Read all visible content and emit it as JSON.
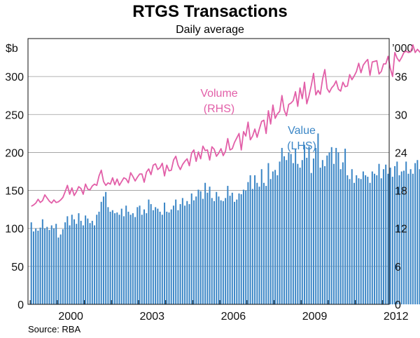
{
  "chart_data": {
    "type": "bar",
    "title": "RTGS Transactions",
    "subtitle": "Daily average",
    "source": "Source: RBA",
    "left_axis": {
      "unit": "$b",
      "ticks": [
        "0",
        "50",
        "100",
        "150",
        "200",
        "250",
        "300"
      ],
      "min": 0,
      "max": 350
    },
    "right_axis": {
      "unit": "’000",
      "ticks": [
        "0",
        "6",
        "12",
        "18",
        "24",
        "30",
        "36"
      ],
      "min": 0,
      "max": 42
    },
    "x_ticks": [
      "2000",
      "2003",
      "2006",
      "2009",
      "2012"
    ],
    "x_range": [
      1998.92,
      2012.25
    ],
    "series": [
      {
        "name": "Value",
        "axis": "left",
        "type": "bar",
        "color": "#3b86c6",
        "annotation": [
          "Value",
          "(LHS)"
        ],
        "start": 1999.0,
        "step_months": 1,
        "values": [
          108,
          96,
          100,
          97,
          101,
          112,
          100,
          102,
          98,
          104,
          100,
          106,
          88,
          92,
          99,
          108,
          116,
          104,
          118,
          112,
          106,
          120,
          110,
          104,
          117,
          113,
          107,
          110,
          104,
          118,
          122,
          135,
          142,
          148,
          128,
          122,
          124,
          120,
          121,
          118,
          126,
          116,
          130,
          122,
          118,
          120,
          115,
          128,
          130,
          118,
          125,
          120,
          138,
          132,
          124,
          128,
          126,
          122,
          118,
          134,
          122,
          121,
          125,
          130,
          138,
          124,
          132,
          140,
          130,
          136,
          132,
          146,
          137,
          142,
          151,
          149,
          139,
          160,
          147,
          155,
          140,
          136,
          148,
          142,
          137,
          136,
          140,
          156,
          143,
          147,
          135,
          138,
          146,
          145,
          151,
          150,
          161,
          170,
          152,
          170,
          160,
          155,
          178,
          160,
          156,
          186,
          165,
          175,
          177,
          170,
          188,
          206,
          195,
          190,
          200,
          198,
          186,
          205,
          185,
          180,
          190,
          210,
          193,
          208,
          173,
          192,
          206,
          225,
          180,
          190,
          182,
          196,
          200,
          207,
          185,
          206,
          200,
          178,
          187,
          205,
          170,
          165,
          178,
          160,
          170,
          166,
          165,
          175,
          170,
          168,
          160,
          175,
          172,
          170,
          185,
          166,
          178,
          184,
          172,
          180,
          168,
          182,
          188,
          170,
          175,
          176,
          188,
          172,
          178,
          172,
          186,
          190,
          178,
          176,
          170,
          182,
          188,
          166,
          178,
          174,
          182,
          185,
          155,
          158,
          155,
          165,
          170,
          170,
          156,
          172
        ]
      },
      {
        "name": "Volume",
        "axis": "right",
        "type": "line",
        "color": "#e25fa8",
        "annotation": [
          "Volume",
          "(RHS)"
        ],
        "start": 1999.0,
        "step_months": 1,
        "values": [
          15.5,
          15.7,
          16.0,
          16.6,
          16.1,
          16.4,
          17.3,
          16.8,
          16.3,
          16.0,
          16.5,
          16.1,
          16.2,
          16.5,
          16.9,
          17.8,
          18.8,
          17.4,
          18.4,
          17.2,
          17.8,
          18.6,
          18.3,
          17.4,
          19.0,
          18.2,
          18.1,
          18.7,
          19.0,
          18.8,
          20.3,
          21.2,
          19.4,
          18.8,
          19.2,
          19.0,
          20.0,
          18.9,
          19.8,
          18.8,
          19.4,
          20.0,
          19.8,
          19.2,
          20.8,
          20.2,
          19.5,
          20.1,
          20.6,
          20.6,
          19.3,
          20.9,
          21.4,
          20.5,
          22.0,
          22.2,
          21.3,
          21.6,
          22.3,
          20.3,
          22.0,
          21.1,
          21.2,
          22.8,
          23.4,
          22.0,
          21.3,
          22.1,
          22.6,
          23.0,
          21.9,
          23.9,
          24.4,
          22.6,
          24.1,
          23.0,
          25.0,
          24.3,
          24.4,
          22.8,
          24.9,
          24.5,
          23.4,
          23.9,
          24.6,
          23.5,
          24.2,
          26.2,
          24.4,
          24.6,
          25.6,
          26.3,
          27.0,
          24.4,
          27.3,
          26.6,
          28.8,
          26.0,
          26.6,
          27.7,
          26.4,
          27.7,
          28.9,
          29.1,
          27.0,
          30.6,
          28.5,
          31.5,
          29.4,
          30.1,
          30.5,
          33.0,
          30.7,
          29.8,
          31.6,
          31.8,
          32.2,
          33.6,
          31.3,
          34.2,
          32.5,
          35.1,
          31.7,
          33.0,
          34.6,
          36.5,
          33.1,
          33.8,
          33.2,
          35.6,
          37.1,
          34.1,
          33.5,
          34.2,
          34.6,
          35.3,
          34.0,
          33.7,
          35.1,
          34.4,
          34.5,
          36.3,
          35.5,
          36.1,
          36.8,
          38.1,
          36.6,
          37.8,
          38.3,
          38.7,
          36.2,
          38.3,
          38.4,
          38.5,
          36.4,
          36.8,
          38.0,
          38.0,
          39.2,
          37.3,
          36.0,
          39.8,
          38.9,
          38.4,
          39.0,
          39.8,
          40.0,
          39.8,
          39.9,
          41.0,
          39.8,
          40.3,
          39.9,
          39.5,
          40.0,
          40.9,
          39.4,
          39.8,
          40.6,
          40.6,
          40.3,
          41.7,
          40.3,
          41.2,
          42.0,
          41.7,
          42.6,
          43.4,
          42.5,
          43.0
        ]
      }
    ]
  }
}
